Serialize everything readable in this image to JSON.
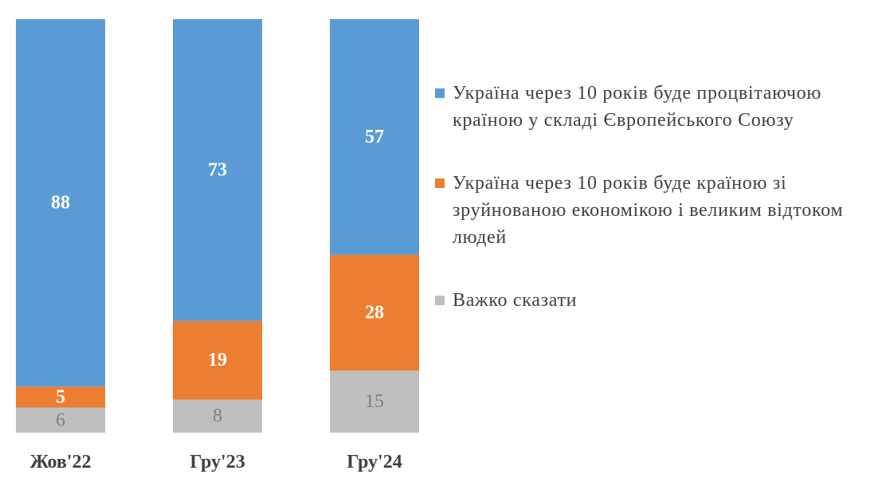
{
  "chart_data": {
    "type": "bar",
    "stacked": true,
    "normalized": true,
    "categories": [
      "Жов'22",
      "Гру'23",
      "Гру'24"
    ],
    "series": [
      {
        "name": "Україна через 10 років буде процвітаючою країною у складі Європейського Союзу",
        "color": "#5B9BD5",
        "label_color": "#ffffff",
        "values": [
          88,
          73,
          57
        ]
      },
      {
        "name": "Україна через 10 років буде країною зі зруйнованою економікою і великим відтоком людей",
        "color": "#ED7D31",
        "label_color": "#ffffff",
        "values": [
          5,
          19,
          28
        ]
      },
      {
        "name": "Важко сказати",
        "color": "#BFBFBF",
        "label_color": "#7f7f7f",
        "values": [
          6,
          8,
          15
        ]
      }
    ],
    "legend_position": "right",
    "grid": false,
    "axes_visible": false
  }
}
